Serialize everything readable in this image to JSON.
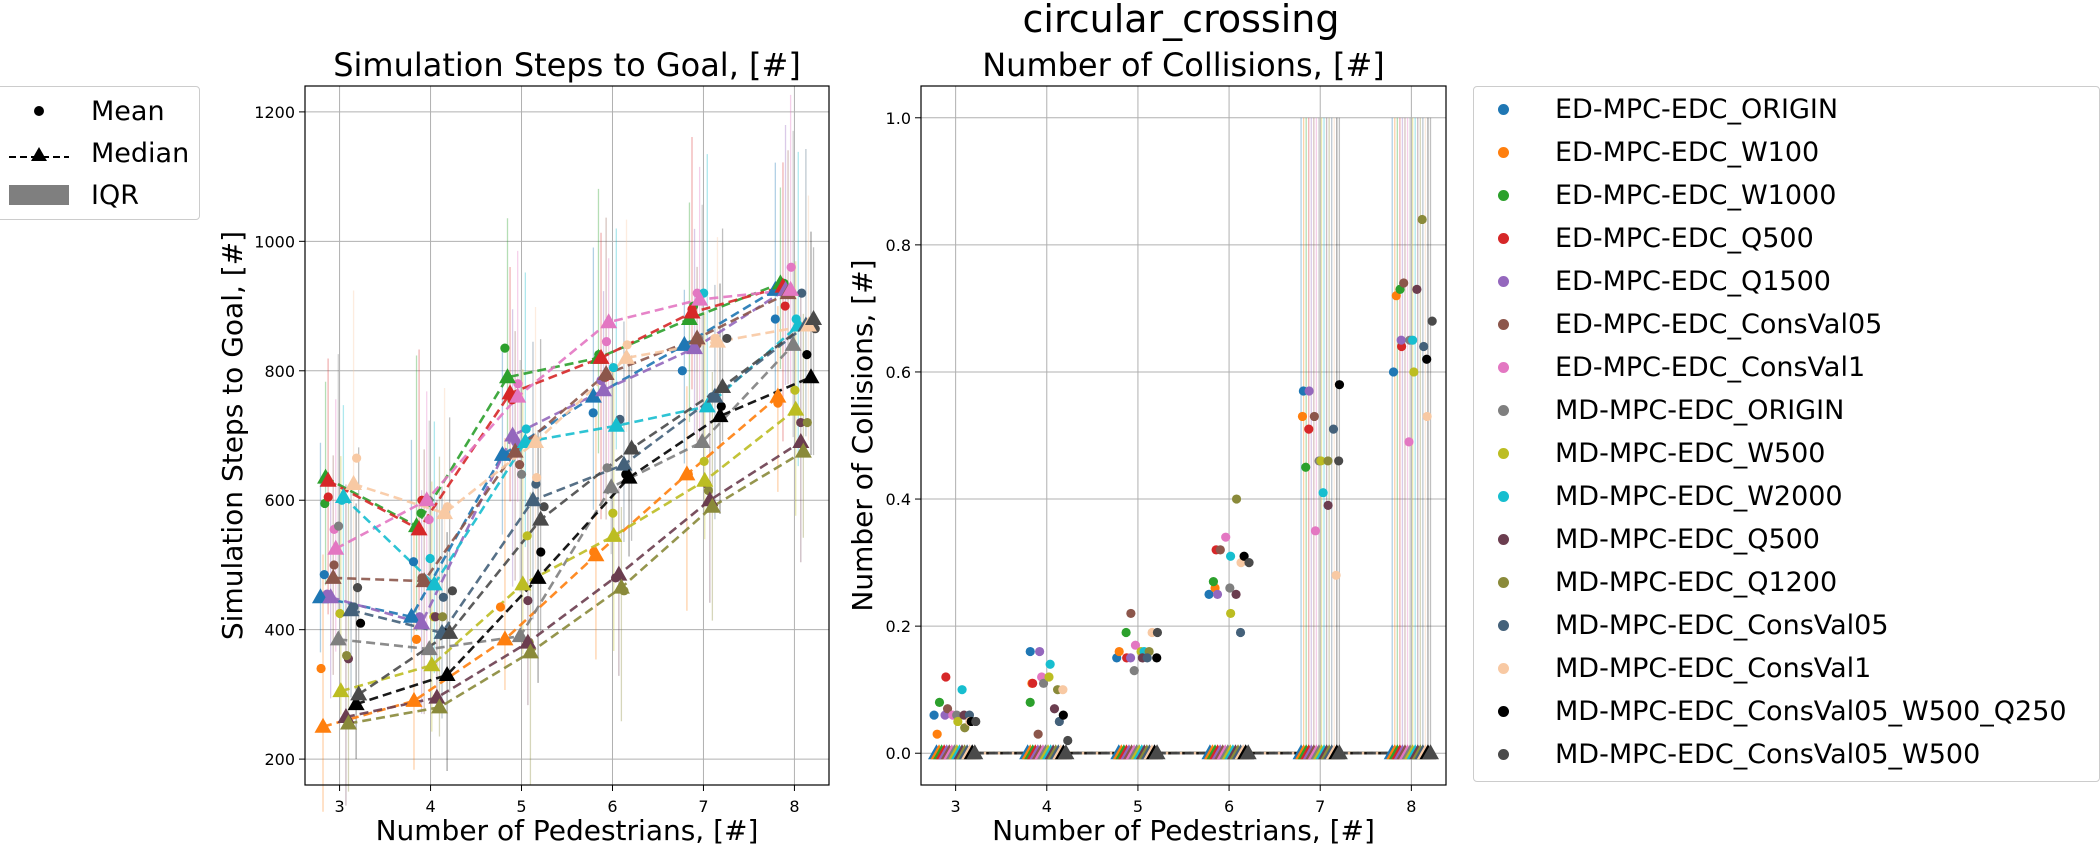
{
  "figure_title": "circular_crossing",
  "stat_legend": {
    "items": [
      {
        "label": "Mean",
        "marker": "dot"
      },
      {
        "label": "Median",
        "marker": "dashed-triangle"
      },
      {
        "label": "IQR",
        "marker": "gray-band"
      }
    ]
  },
  "series_legend": {
    "placement": "outside-right",
    "items": [
      {
        "label": "ED-MPC-EDC_ORIGIN",
        "color": "#1f77b4"
      },
      {
        "label": "ED-MPC-EDC_W100",
        "color": "#ff7f0e"
      },
      {
        "label": "ED-MPC-EDC_W1000",
        "color": "#2ca02c"
      },
      {
        "label": "ED-MPC-EDC_Q500",
        "color": "#d62728"
      },
      {
        "label": "ED-MPC-EDC_Q1500",
        "color": "#9467bd"
      },
      {
        "label": "ED-MPC-EDC_ConsVal05",
        "color": "#8c564b"
      },
      {
        "label": "ED-MPC-EDC_ConsVal1",
        "color": "#e377c2"
      },
      {
        "label": "MD-MPC-EDC_ORIGIN",
        "color": "#7f7f7f"
      },
      {
        "label": "MD-MPC-EDC_W500",
        "color": "#bcbd22"
      },
      {
        "label": "MD-MPC-EDC_W2000",
        "color": "#17becf"
      },
      {
        "label": "MD-MPC-EDC_Q500",
        "color": "#6b3d4f"
      },
      {
        "label": "MD-MPC-EDC_Q1200",
        "color": "#8a8a3a"
      },
      {
        "label": "MD-MPC-EDC_ConsVal05",
        "color": "#44617a"
      },
      {
        "label": "MD-MPC-EDC_ConsVal1",
        "color": "#f8c9a3"
      },
      {
        "label": "MD-MPC-EDC_ConsVal05_W500_Q250",
        "color": "#000000"
      },
      {
        "label": "MD-MPC-EDC_ConsVal05_W500",
        "color": "#4a4a4a"
      }
    ]
  },
  "chart_data": [
    {
      "type": "line",
      "title": "Simulation Steps to Goal, [#]",
      "xlabel": "Number of Pedestrians, [#]",
      "ylabel": "Simulation Steps to Goal, [#]",
      "x": [
        3,
        4,
        5,
        6,
        7,
        8
      ],
      "ylim": [
        160,
        1240
      ],
      "yticks": [
        200,
        400,
        600,
        800,
        1000,
        1200
      ],
      "grid": true,
      "series": [
        {
          "name": "ED-MPC-EDC_ORIGIN",
          "mean": [
            485,
            505,
            670,
            735,
            800,
            880
          ],
          "median": [
            450,
            420,
            670,
            760,
            840,
            925
          ]
        },
        {
          "name": "ED-MPC-EDC_W100",
          "mean": [
            340,
            385,
            435,
            520,
            640,
            750
          ],
          "median": [
            250,
            290,
            385,
            515,
            640,
            760
          ]
        },
        {
          "name": "ED-MPC-EDC_W1000",
          "mean": [
            595,
            580,
            835,
            825,
            900,
            935
          ],
          "median": [
            635,
            560,
            790,
            820,
            880,
            935
          ]
        },
        {
          "name": "ED-MPC-EDC_Q500",
          "mean": [
            605,
            600,
            755,
            790,
            895,
            900
          ],
          "median": [
            630,
            555,
            765,
            820,
            890,
            930
          ]
        },
        {
          "name": "ED-MPC-EDC_Q1500",
          "mean": [
            455,
            420,
            690,
            785,
            835,
            920
          ],
          "median": [
            450,
            410,
            700,
            770,
            835,
            925
          ]
        },
        {
          "name": "ED-MPC-EDC_ConsVal05",
          "mean": [
            500,
            480,
            655,
            790,
            840,
            920
          ],
          "median": [
            480,
            475,
            675,
            795,
            850,
            920
          ]
        },
        {
          "name": "ED-MPC-EDC_ConsVal1",
          "mean": [
            555,
            570,
            780,
            845,
            920,
            960
          ],
          "median": [
            525,
            600,
            760,
            875,
            910,
            925
          ]
        },
        {
          "name": "MD-MPC-EDC_ORIGIN",
          "mean": [
            560,
            600,
            640,
            650,
            850,
            920
          ],
          "median": [
            385,
            370,
            390,
            620,
            690,
            840
          ]
        },
        {
          "name": "MD-MPC-EDC_W500",
          "mean": [
            425,
            420,
            545,
            580,
            660,
            770
          ],
          "median": [
            305,
            345,
            470,
            545,
            630,
            740
          ]
        },
        {
          "name": "MD-MPC-EDC_W2000",
          "mean": [
            600,
            510,
            710,
            805,
            920,
            880
          ],
          "median": [
            605,
            470,
            690,
            715,
            745,
            870
          ]
        },
        {
          "name": "MD-MPC-EDC_Q500",
          "mean": [
            355,
            420,
            445,
            480,
            625,
            720
          ],
          "median": [
            265,
            295,
            380,
            485,
            600,
            690
          ]
        },
        {
          "name": "MD-MPC-EDC_Q1200",
          "mean": [
            360,
            420,
            380,
            460,
            615,
            720
          ],
          "median": [
            255,
            280,
            365,
            465,
            590,
            675
          ]
        },
        {
          "name": "MD-MPC-EDC_ConsVal05",
          "mean": [
            435,
            450,
            625,
            725,
            760,
            920
          ],
          "median": [
            430,
            395,
            600,
            655,
            760,
            870
          ]
        },
        {
          "name": "MD-MPC-EDC_ConsVal1",
          "mean": [
            665,
            590,
            635,
            840,
            850,
            870
          ],
          "median": [
            625,
            580,
            690,
            820,
            845,
            870
          ]
        },
        {
          "name": "MD-MPC-EDC_ConsVal05_W500_Q250",
          "mean": [
            410,
            395,
            520,
            640,
            745,
            825
          ],
          "median": [
            285,
            330,
            480,
            635,
            730,
            790
          ]
        },
        {
          "name": "MD-MPC-EDC_ConsVal05_W500",
          "mean": [
            465,
            460,
            590,
            680,
            850,
            865
          ],
          "median": [
            300,
            395,
            570,
            680,
            775,
            880
          ]
        }
      ]
    },
    {
      "type": "scatter",
      "title": "Number of Collisions, [#]",
      "xlabel": "Number of Pedestrians, [#]",
      "ylabel": "Number of Collisions, [#]",
      "x": [
        3,
        4,
        5,
        6,
        7,
        8
      ],
      "ylim": [
        -0.05,
        1.05
      ],
      "yticks": [
        0.0,
        0.2,
        0.4,
        0.6,
        0.8,
        1.0
      ],
      "grid": true,
      "series": [
        {
          "name": "ED-MPC-EDC_ORIGIN",
          "mean": [
            0.06,
            0.16,
            0.15,
            0.25,
            0.57,
            0.6
          ],
          "median": [
            0,
            0,
            0,
            0,
            0,
            0
          ]
        },
        {
          "name": "ED-MPC-EDC_W100",
          "mean": [
            0.03,
            0.11,
            0.16,
            0.26,
            0.53,
            0.72
          ],
          "median": [
            0,
            0,
            0,
            0,
            0,
            0
          ]
        },
        {
          "name": "ED-MPC-EDC_W1000",
          "mean": [
            0.08,
            0.08,
            0.19,
            0.27,
            0.45,
            0.73
          ],
          "median": [
            0,
            0,
            0,
            0,
            0,
            0
          ]
        },
        {
          "name": "ED-MPC-EDC_Q500",
          "mean": [
            0.12,
            0.11,
            0.15,
            0.32,
            0.51,
            0.64
          ],
          "median": [
            0,
            0,
            0,
            0,
            0,
            0
          ]
        },
        {
          "name": "ED-MPC-EDC_Q1500",
          "mean": [
            0.06,
            0.16,
            0.15,
            0.25,
            0.57,
            0.65
          ],
          "median": [
            0,
            0,
            0,
            0,
            0,
            0
          ]
        },
        {
          "name": "ED-MPC-EDC_ConsVal05",
          "mean": [
            0.07,
            0.03,
            0.22,
            0.32,
            0.53,
            0.74
          ],
          "median": [
            0,
            0,
            0,
            0,
            0,
            0
          ]
        },
        {
          "name": "ED-MPC-EDC_ConsVal1",
          "mean": [
            0.06,
            0.12,
            0.17,
            0.34,
            0.35,
            0.49
          ],
          "median": [
            0,
            0,
            0,
            0,
            0,
            0
          ]
        },
        {
          "name": "MD-MPC-EDC_ORIGIN",
          "mean": [
            0.06,
            0.11,
            0.13,
            0.26,
            0.46,
            0.65
          ],
          "median": [
            0,
            0,
            0,
            0,
            0,
            0
          ]
        },
        {
          "name": "MD-MPC-EDC_W500",
          "mean": [
            0.05,
            0.12,
            0.16,
            0.22,
            0.46,
            0.6
          ],
          "median": [
            0,
            0,
            0,
            0,
            0,
            0
          ]
        },
        {
          "name": "MD-MPC-EDC_W2000",
          "mean": [
            0.1,
            0.14,
            0.16,
            0.31,
            0.41,
            0.65
          ],
          "median": [
            0,
            0,
            0,
            0,
            0,
            0
          ]
        },
        {
          "name": "MD-MPC-EDC_Q500",
          "mean": [
            0.06,
            0.07,
            0.15,
            0.25,
            0.39,
            0.73
          ],
          "median": [
            0,
            0,
            0,
            0,
            0,
            0
          ]
        },
        {
          "name": "MD-MPC-EDC_Q1200",
          "mean": [
            0.04,
            0.1,
            0.16,
            0.4,
            0.46,
            0.84
          ],
          "median": [
            0,
            0,
            0,
            0,
            0,
            0
          ]
        },
        {
          "name": "MD-MPC-EDC_ConsVal05",
          "mean": [
            0.06,
            0.05,
            0.15,
            0.19,
            0.51,
            0.64
          ],
          "median": [
            0,
            0,
            0,
            0,
            0,
            0
          ]
        },
        {
          "name": "MD-MPC-EDC_ConsVal1",
          "mean": [
            0.05,
            0.1,
            0.19,
            0.3,
            0.28,
            0.53
          ],
          "median": [
            0,
            0,
            0,
            0,
            0,
            0
          ]
        },
        {
          "name": "MD-MPC-EDC_ConsVal05_W500_Q250",
          "mean": [
            0.05,
            0.06,
            0.15,
            0.31,
            0.58,
            0.62
          ],
          "median": [
            0,
            0,
            0,
            0,
            0,
            0
          ]
        },
        {
          "name": "MD-MPC-EDC_ConsVal05_W500",
          "mean": [
            0.05,
            0.02,
            0.19,
            0.3,
            0.46,
            0.68
          ],
          "median": [
            0,
            0,
            0,
            0,
            0,
            0
          ]
        }
      ]
    }
  ]
}
